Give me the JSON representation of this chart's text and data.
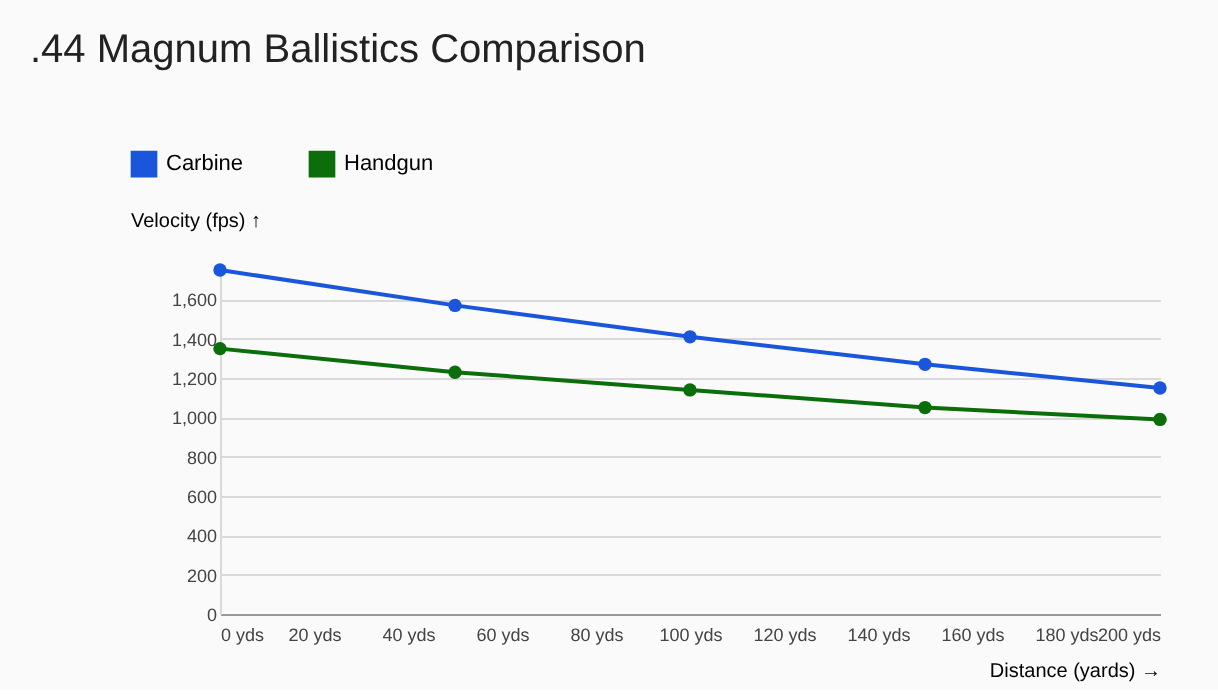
{
  "chart_data": {
    "type": "line",
    "title": ".44 Magnum Ballistics Comparison",
    "xlabel": "Distance (yards) →",
    "ylabel": "Velocity (fps) ↑",
    "x": [
      0,
      50,
      100,
      150,
      200
    ],
    "series": [
      {
        "name": "Carbine",
        "color": "#1a56db",
        "values": [
          1750,
          1570,
          1410,
          1270,
          1150
        ]
      },
      {
        "name": "Handgun",
        "color": "#0b6e0b",
        "values": [
          1350,
          1230,
          1140,
          1050,
          990
        ]
      }
    ],
    "xlim": [
      0,
      200
    ],
    "xticks": [
      {
        "value": 0,
        "label": "0 yds"
      },
      {
        "value": 20,
        "label": "20 yds"
      },
      {
        "value": 40,
        "label": "40 yds"
      },
      {
        "value": 60,
        "label": "60 yds"
      },
      {
        "value": 80,
        "label": "80 yds"
      },
      {
        "value": 100,
        "label": "100 yds"
      },
      {
        "value": 120,
        "label": "120 yds"
      },
      {
        "value": 140,
        "label": "140 yds"
      },
      {
        "value": 160,
        "label": "160 yds"
      },
      {
        "value": 180,
        "label": "180 yds"
      },
      {
        "value": 200,
        "label": "200 yds"
      }
    ],
    "ylim": [
      0,
      1750
    ],
    "yticks": [
      0,
      200,
      400,
      600,
      800,
      {
        "value": 1000,
        "label": "1,000"
      },
      {
        "value": 1200,
        "label": "1,200"
      },
      {
        "value": 1400,
        "label": "1,400"
      },
      {
        "value": 1600,
        "label": "1,600"
      }
    ],
    "grid": "y",
    "legend": "top left",
    "marker": "circle",
    "line_style": "solid"
  }
}
